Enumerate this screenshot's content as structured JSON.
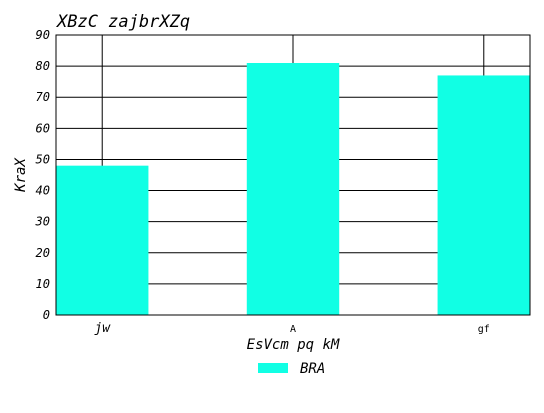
{
  "chart_data": {
    "type": "bar",
    "title": "XBzC zajbrXZq",
    "xlabel": "EsVcm pq kM",
    "ylabel": "KraX",
    "categories": [
      "jw",
      "A",
      "gf"
    ],
    "series": [
      {
        "name": "BRA",
        "values": [
          48,
          81,
          77
        ],
        "color": "#11ffe4"
      }
    ],
    "ylim": [
      0,
      90
    ],
    "yticks": [
      "0",
      "10",
      "20",
      "30",
      "40",
      "50",
      "60",
      "70",
      "80",
      "90"
    ],
    "grid": true,
    "legend_position": "bottom-center"
  }
}
